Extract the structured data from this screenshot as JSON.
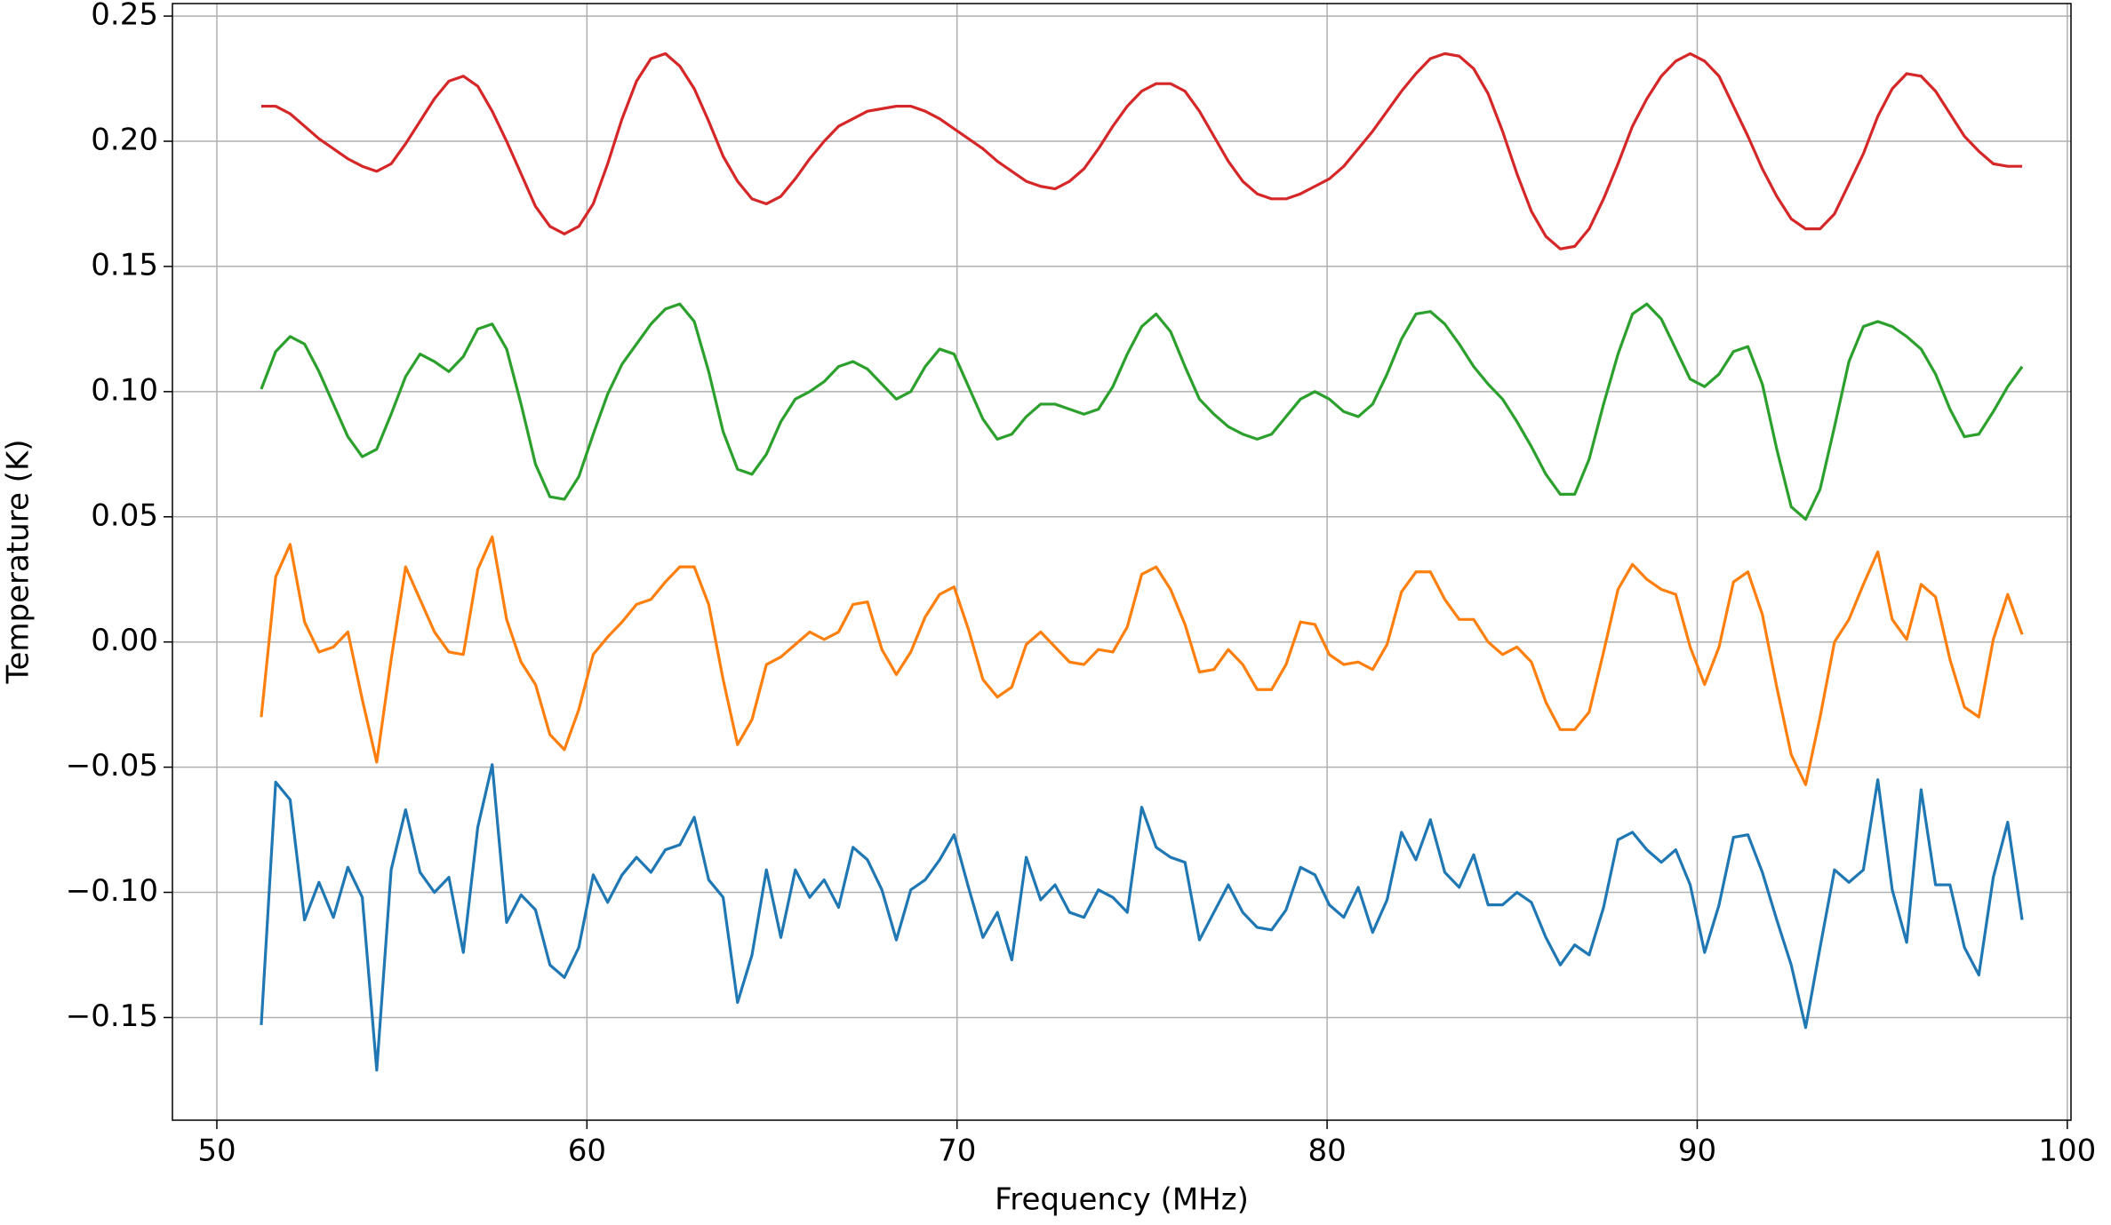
{
  "chart_data": {
    "type": "line",
    "xlabel": "Frequency (MHz)",
    "ylabel": "Temperature (K)",
    "x": [
      51.2,
      51.59,
      51.98,
      52.37,
      52.76,
      53.15,
      53.54,
      53.93,
      54.32,
      54.71,
      55.1,
      55.49,
      55.88,
      56.27,
      56.66,
      57.05,
      57.44,
      57.83,
      58.22,
      58.61,
      59,
      59.39,
      59.78,
      60.17,
      60.56,
      60.95,
      61.34,
      61.73,
      62.12,
      62.51,
      62.9,
      63.29,
      63.68,
      64.07,
      64.46,
      64.85,
      65.24,
      65.63,
      66.02,
      66.41,
      66.8,
      67.19,
      67.58,
      67.97,
      68.36,
      68.75,
      69.14,
      69.53,
      69.92,
      70.31,
      70.7,
      71.09,
      71.48,
      71.87,
      72.26,
      72.65,
      73.04,
      73.43,
      73.82,
      74.21,
      74.6,
      74.99,
      75.38,
      75.77,
      76.16,
      76.55,
      76.94,
      77.33,
      77.72,
      78.11,
      78.5,
      78.89,
      79.28,
      79.67,
      80.06,
      80.45,
      80.84,
      81.23,
      81.62,
      82.01,
      82.4,
      82.79,
      83.18,
      83.57,
      83.96,
      84.35,
      84.74,
      85.13,
      85.52,
      85.91,
      86.3,
      86.69,
      87.08,
      87.47,
      87.86,
      88.25,
      88.64,
      89.03,
      89.42,
      89.81,
      90.2,
      90.59,
      90.98,
      91.37,
      91.76,
      92.15,
      92.54,
      92.93,
      93.32,
      93.71,
      94.1,
      94.49,
      94.88,
      95.27,
      95.66,
      96.05,
      96.44,
      96.83,
      97.22,
      97.61,
      98,
      98.39,
      98.78
    ],
    "series": [
      {
        "color": "#1f77b4",
        "values": [
          -0.153,
          -0.056,
          -0.063,
          -0.111,
          -0.096,
          -0.11,
          -0.09,
          -0.102,
          -0.171,
          -0.091,
          -0.067,
          -0.092,
          -0.1,
          -0.094,
          -0.124,
          -0.074,
          -0.049,
          -0.112,
          -0.101,
          -0.107,
          -0.129,
          -0.134,
          -0.122,
          -0.093,
          -0.104,
          -0.093,
          -0.086,
          -0.092,
          -0.083,
          -0.081,
          -0.07,
          -0.095,
          -0.102,
          -0.144,
          -0.125,
          -0.091,
          -0.118,
          -0.091,
          -0.102,
          -0.095,
          -0.106,
          -0.082,
          -0.087,
          -0.099,
          -0.119,
          -0.099,
          -0.095,
          -0.087,
          -0.077,
          -0.098,
          -0.118,
          -0.108,
          -0.127,
          -0.086,
          -0.103,
          -0.097,
          -0.108,
          -0.11,
          -0.099,
          -0.102,
          -0.108,
          -0.066,
          -0.082,
          -0.086,
          -0.088,
          -0.119,
          -0.108,
          -0.097,
          -0.108,
          -0.114,
          -0.115,
          -0.107,
          -0.09,
          -0.093,
          -0.105,
          -0.11,
          -0.098,
          -0.116,
          -0.103,
          -0.076,
          -0.087,
          -0.071,
          -0.092,
          -0.098,
          -0.085,
          -0.105,
          -0.105,
          -0.1,
          -0.104,
          -0.118,
          -0.129,
          -0.121,
          -0.125,
          -0.106,
          -0.079,
          -0.076,
          -0.083,
          -0.088,
          -0.083,
          -0.097,
          -0.124,
          -0.105,
          -0.078,
          -0.077,
          -0.092,
          -0.111,
          -0.129,
          -0.154,
          -0.122,
          -0.091,
          -0.096,
          -0.091,
          -0.055,
          -0.099,
          -0.12,
          -0.059,
          -0.097,
          -0.097,
          -0.122,
          -0.133,
          -0.094,
          -0.072,
          -0.111
        ]
      },
      {
        "color": "#ff7f0e",
        "values": [
          -0.03,
          0.026,
          0.039,
          0.008,
          -0.004,
          -0.002,
          0.004,
          -0.023,
          -0.048,
          -0.007,
          0.03,
          0.017,
          0.004,
          -0.004,
          -0.005,
          0.029,
          0.042,
          0.009,
          -0.008,
          -0.017,
          -0.037,
          -0.043,
          -0.027,
          -0.005,
          0.002,
          0.008,
          0.015,
          0.017,
          0.024,
          0.03,
          0.03,
          0.015,
          -0.015,
          -0.041,
          -0.031,
          -0.009,
          -0.006,
          -0.001,
          0.004,
          0.001,
          0.004,
          0.015,
          0.016,
          -0.003,
          -0.013,
          -0.004,
          0.01,
          0.019,
          0.022,
          0.005,
          -0.015,
          -0.022,
          -0.018,
          -0.001,
          0.004,
          -0.002,
          -0.008,
          -0.009,
          -0.003,
          -0.004,
          0.006,
          0.027,
          0.03,
          0.021,
          0.007,
          -0.012,
          -0.011,
          -0.003,
          -0.009,
          -0.019,
          -0.019,
          -0.009,
          0.008,
          0.007,
          -0.005,
          -0.009,
          -0.008,
          -0.011,
          -0.001,
          0.02,
          0.028,
          0.028,
          0.017,
          0.009,
          0.009,
          0.0,
          -0.005,
          -0.002,
          -0.008,
          -0.024,
          -0.035,
          -0.035,
          -0.028,
          -0.004,
          0.021,
          0.031,
          0.025,
          0.021,
          0.019,
          -0.002,
          -0.017,
          -0.002,
          0.024,
          0.028,
          0.011,
          -0.018,
          -0.045,
          -0.057,
          -0.03,
          0.0,
          0.009,
          0.023,
          0.036,
          0.009,
          0.001,
          0.023,
          0.018,
          -0.007,
          -0.026,
          -0.03,
          0.001,
          0.019,
          0.003
        ]
      },
      {
        "color": "#2ca02c",
        "values": [
          0.101,
          0.116,
          0.122,
          0.119,
          0.108,
          0.095,
          0.082,
          0.074,
          0.077,
          0.091,
          0.106,
          0.115,
          0.112,
          0.108,
          0.114,
          0.125,
          0.127,
          0.117,
          0.095,
          0.071,
          0.058,
          0.057,
          0.066,
          0.083,
          0.099,
          0.111,
          0.119,
          0.127,
          0.133,
          0.135,
          0.128,
          0.108,
          0.084,
          0.069,
          0.067,
          0.075,
          0.088,
          0.097,
          0.1,
          0.104,
          0.11,
          0.112,
          0.109,
          0.103,
          0.097,
          0.1,
          0.11,
          0.117,
          0.115,
          0.102,
          0.089,
          0.081,
          0.083,
          0.09,
          0.095,
          0.095,
          0.093,
          0.091,
          0.093,
          0.102,
          0.115,
          0.126,
          0.131,
          0.124,
          0.11,
          0.097,
          0.091,
          0.086,
          0.083,
          0.081,
          0.083,
          0.09,
          0.097,
          0.1,
          0.097,
          0.092,
          0.09,
          0.095,
          0.107,
          0.121,
          0.131,
          0.132,
          0.127,
          0.119,
          0.11,
          0.103,
          0.097,
          0.088,
          0.078,
          0.067,
          0.059,
          0.059,
          0.073,
          0.095,
          0.115,
          0.131,
          0.135,
          0.129,
          0.117,
          0.105,
          0.102,
          0.107,
          0.116,
          0.118,
          0.103,
          0.077,
          0.054,
          0.049,
          0.061,
          0.086,
          0.112,
          0.126,
          0.128,
          0.126,
          0.122,
          0.117,
          0.107,
          0.093,
          0.082,
          0.083,
          0.092,
          0.102,
          0.11
        ]
      },
      {
        "color": "#d62728",
        "values": [
          0.214,
          0.214,
          0.211,
          0.206,
          0.201,
          0.197,
          0.193,
          0.19,
          0.188,
          0.191,
          0.199,
          0.208,
          0.217,
          0.224,
          0.226,
          0.222,
          0.212,
          0.2,
          0.187,
          0.174,
          0.166,
          0.163,
          0.166,
          0.175,
          0.191,
          0.209,
          0.224,
          0.233,
          0.235,
          0.23,
          0.221,
          0.208,
          0.194,
          0.184,
          0.177,
          0.175,
          0.178,
          0.185,
          0.193,
          0.2,
          0.206,
          0.209,
          0.212,
          0.213,
          0.214,
          0.214,
          0.212,
          0.209,
          0.205,
          0.201,
          0.197,
          0.192,
          0.188,
          0.184,
          0.182,
          0.181,
          0.184,
          0.189,
          0.197,
          0.206,
          0.214,
          0.22,
          0.223,
          0.223,
          0.22,
          0.212,
          0.202,
          0.192,
          0.184,
          0.179,
          0.177,
          0.177,
          0.179,
          0.182,
          0.185,
          0.19,
          0.197,
          0.204,
          0.212,
          0.22,
          0.227,
          0.233,
          0.235,
          0.234,
          0.229,
          0.219,
          0.204,
          0.187,
          0.172,
          0.162,
          0.157,
          0.158,
          0.165,
          0.177,
          0.191,
          0.206,
          0.217,
          0.226,
          0.232,
          0.235,
          0.232,
          0.226,
          0.214,
          0.202,
          0.189,
          0.178,
          0.169,
          0.165,
          0.165,
          0.171,
          0.183,
          0.195,
          0.21,
          0.221,
          0.227,
          0.226,
          0.22,
          0.211,
          0.202,
          0.196,
          0.191,
          0.19,
          0.19
        ]
      }
    ],
    "xlim": [
      48.8,
      100.1
    ],
    "ylim": [
      -0.191,
      0.255
    ],
    "xticks": [
      50,
      60,
      70,
      80,
      90,
      100
    ],
    "yticks": [
      {
        "value": -0.15,
        "label": "−0.15"
      },
      {
        "value": -0.1,
        "label": "−0.10"
      },
      {
        "value": -0.05,
        "label": "−0.05"
      },
      {
        "value": 0,
        "label": "0.00"
      },
      0.05,
      {
        "value": 0.1,
        "label": "0.10"
      },
      0.15,
      {
        "value": 0.2,
        "label": "0.20"
      },
      0.25
    ],
    "grid": true
  }
}
